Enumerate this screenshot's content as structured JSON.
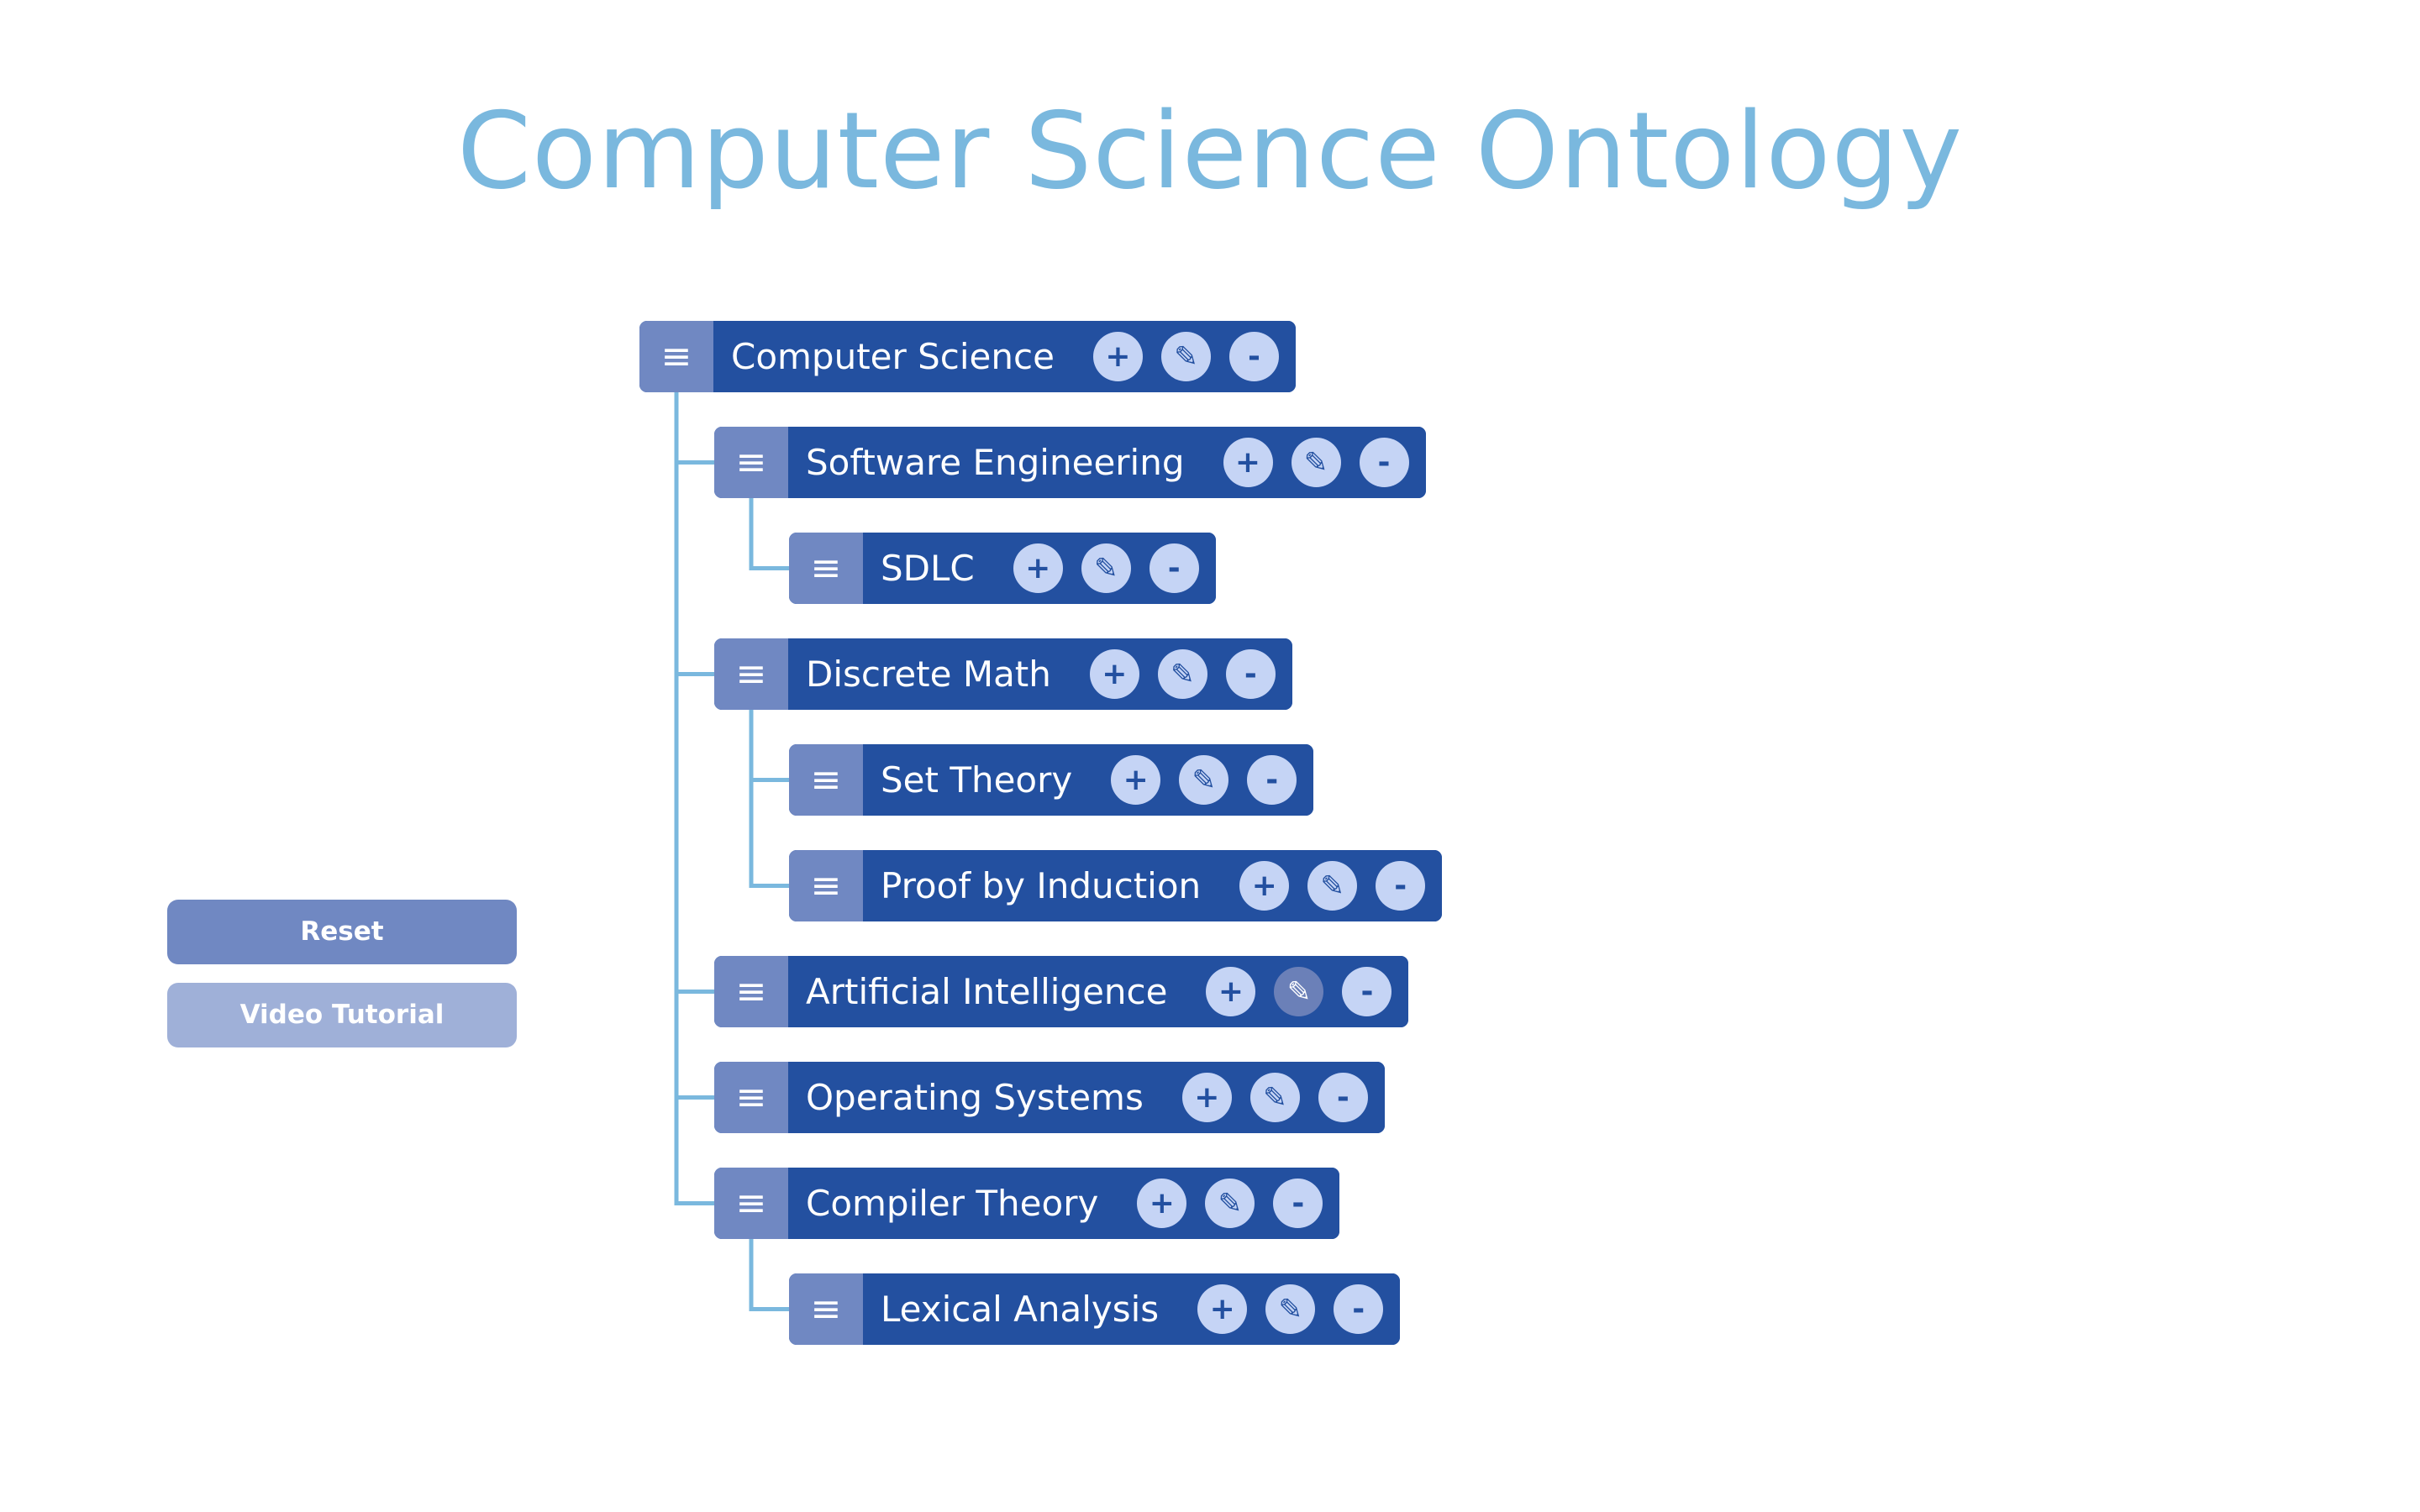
{
  "title": "Computer Science Ontology",
  "controls": {
    "reset_label": "Reset",
    "video_label": "Video Tutorial"
  },
  "icons": {
    "handle": "≡",
    "add": "+",
    "edit": "✎",
    "remove": "-"
  },
  "colors": {
    "title": "#7ab8de",
    "node_body": "#2350a0",
    "node_handle": "#7088c2",
    "action_button": "#c5d4f5",
    "connector": "#7ab8de",
    "reset_button": "#7088c2",
    "video_button": "#9fb0d8"
  },
  "tree": {
    "label": "Computer Science",
    "children": [
      {
        "label": "Software Engineering",
        "children": [
          {
            "label": "SDLC",
            "children": []
          }
        ]
      },
      {
        "label": "Discrete Math",
        "children": [
          {
            "label": "Set Theory",
            "children": []
          },
          {
            "label": "Proof by Induction",
            "children": []
          }
        ]
      },
      {
        "label": "Artificial Intelligence",
        "edit_hovered": true,
        "children": []
      },
      {
        "label": "Operating Systems",
        "children": []
      },
      {
        "label": "Compiler Theory",
        "children": [
          {
            "label": "Lexical Analysis",
            "children": []
          }
        ]
      }
    ]
  }
}
